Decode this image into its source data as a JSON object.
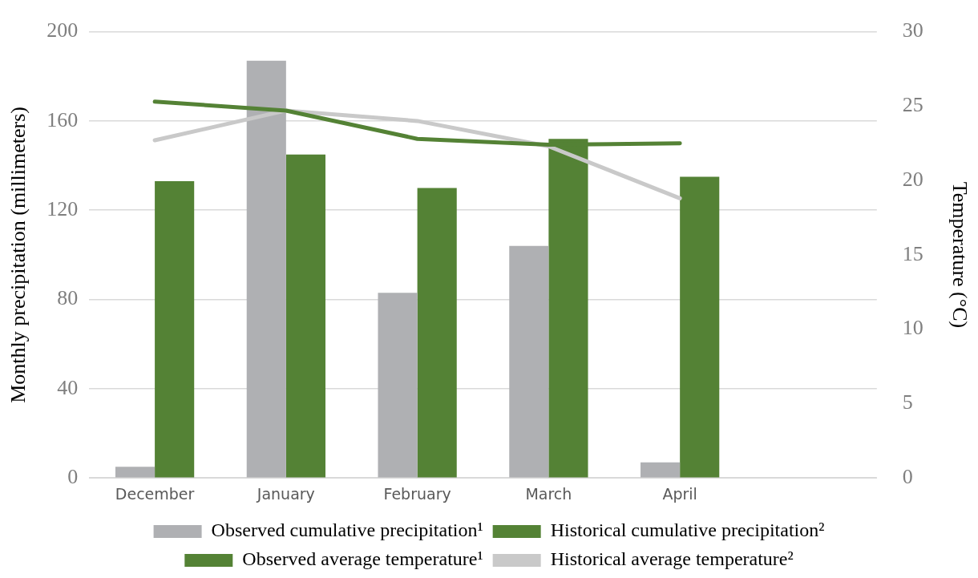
{
  "chart_data": {
    "type": "bar",
    "ylabel": "Monthly precipitation (millimeters)",
    "y2label": "Temperature (°C)",
    "categories": [
      "December",
      "January",
      "February",
      "March",
      "April",
      null
    ],
    "series": [
      {
        "name": "Observed cumulative precipitation¹",
        "color": "#afb0b3",
        "values": [
          5,
          187,
          83,
          104,
          7,
          null
        ]
      },
      {
        "name": "Historical cumulative precipitation²",
        "color": "#548235",
        "values": [
          133,
          145,
          130,
          152,
          135,
          null
        ]
      },
      {
        "name": "Observed average temperature¹",
        "type": "line",
        "axis": "y2",
        "color": "#548235",
        "values": [
          25.3,
          24.7,
          22.8,
          22.4,
          22.5,
          null
        ]
      },
      {
        "name": "Historical average temperature²",
        "type": "line",
        "axis": "y2",
        "color": "#c9c9c9",
        "values": [
          22.7,
          24.7,
          24.0,
          22.3,
          18.8,
          null
        ]
      }
    ],
    "ylim": [
      0,
      200
    ],
    "yticks": [
      0,
      40,
      80,
      120,
      160,
      200
    ],
    "y2lim": [
      0,
      30
    ],
    "y2ticks": [
      0,
      5,
      10,
      15,
      20,
      25,
      30
    ],
    "grid": "y",
    "legend": "bottom",
    "marker": "none",
    "line_style": "solid"
  }
}
